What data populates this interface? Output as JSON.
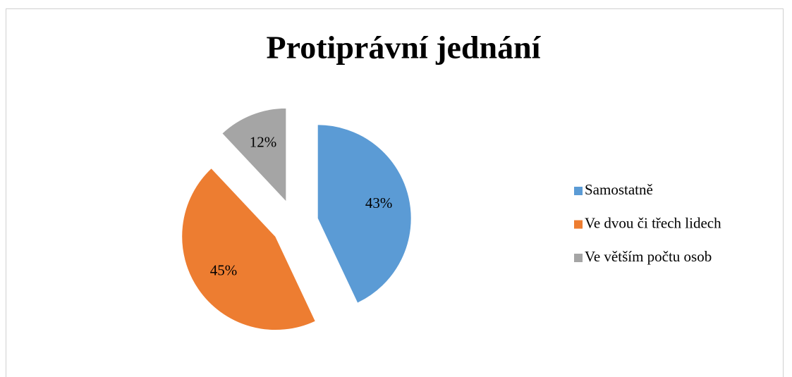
{
  "chart_data": {
    "type": "pie",
    "title": "Protiprávní jednání",
    "categories": [
      "Samostatně",
      "Ve dvou či třech lidech",
      "Ve větším počtu osob"
    ],
    "values": [
      43,
      45,
      12
    ],
    "value_labels": [
      "43%",
      "45%",
      "12%"
    ],
    "colors": [
      "#5b9bd5",
      "#ed7d31",
      "#a5a5a5"
    ],
    "legend": "right"
  }
}
